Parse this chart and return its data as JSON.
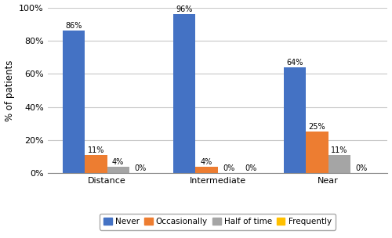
{
  "categories": [
    "Distance",
    "Intermediate",
    "Near"
  ],
  "series": {
    "Never": [
      86,
      96,
      64
    ],
    "Occasionally": [
      11,
      4,
      25
    ],
    "Half of time": [
      4,
      0,
      11
    ],
    "Frequently": [
      0,
      0,
      0
    ]
  },
  "colors": {
    "Never": "#4472C4",
    "Occasionally": "#ED7D31",
    "Half of time": "#A5A5A5",
    "Frequently": "#FFC000"
  },
  "ylabel": "% of patients",
  "ylim": [
    0,
    100
  ],
  "yticks": [
    0,
    20,
    40,
    60,
    80,
    100
  ],
  "ytick_labels": [
    "0%",
    "20%",
    "40%",
    "60%",
    "80%",
    "100%"
  ],
  "bar_width": 0.13,
  "group_centers": [
    0.35,
    1.0,
    1.65
  ],
  "background_color": "#ffffff",
  "grid_color": "#c8c8c8",
  "label_fontsize": 7,
  "tick_fontsize": 8,
  "ylabel_fontsize": 8.5,
  "legend_fontsize": 7.5
}
